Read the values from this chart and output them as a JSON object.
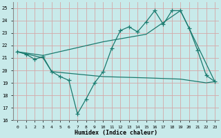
{
  "xlabel": "Humidex (Indice chaleur)",
  "xlim": [
    -0.5,
    23.5
  ],
  "ylim": [
    16,
    25.5
  ],
  "yticks": [
    16,
    17,
    18,
    19,
    20,
    21,
    22,
    23,
    24,
    25
  ],
  "xticks": [
    0,
    1,
    2,
    3,
    4,
    5,
    6,
    7,
    8,
    9,
    10,
    11,
    12,
    13,
    14,
    15,
    16,
    17,
    18,
    19,
    20,
    21,
    22,
    23
  ],
  "bg_color": "#c8eaea",
  "grid_color": "#d4a8a8",
  "line_color": "#1a7a6e",
  "line1_x": [
    0,
    1,
    2,
    3,
    4,
    5,
    6,
    7,
    8,
    9,
    10,
    11,
    12,
    13,
    14,
    15,
    16,
    17,
    18,
    19,
    20,
    21,
    22,
    23
  ],
  "line1_y": [
    21.5,
    21.3,
    20.9,
    21.1,
    19.9,
    19.5,
    19.2,
    16.5,
    17.7,
    19.0,
    19.9,
    21.8,
    23.2,
    23.5,
    23.1,
    23.9,
    24.8,
    23.7,
    24.8,
    24.8,
    23.4,
    21.6,
    19.6,
    19.1
  ],
  "line2_x": [
    0,
    3,
    4,
    10,
    15,
    19,
    20,
    21,
    22,
    23
  ],
  "line2_y": [
    21.5,
    21.0,
    19.9,
    19.5,
    19.4,
    19.3,
    19.2,
    19.1,
    19.0,
    19.1
  ],
  "line3_x": [
    0,
    3,
    10,
    15,
    19,
    20,
    23
  ],
  "line3_y": [
    21.5,
    21.2,
    22.3,
    22.9,
    24.8,
    23.4,
    19.1
  ]
}
